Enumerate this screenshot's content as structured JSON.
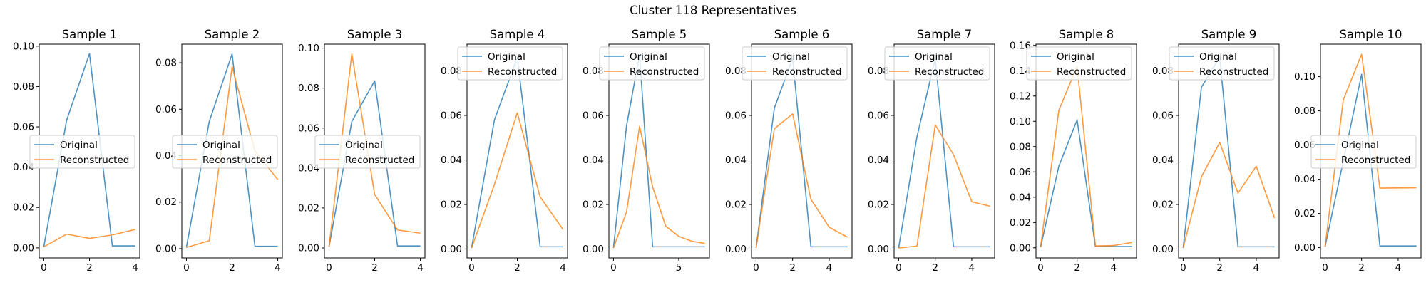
{
  "suptitle": "Cluster 118 Representatives",
  "colors": {
    "original": "#1f77b4",
    "reconstructed": "#ff7f0e"
  },
  "chart_data": [
    {
      "type": "line",
      "title": "Sample 1",
      "x": [
        0,
        1,
        2,
        3,
        4
      ],
      "xlim": [
        -0.2,
        4.2
      ],
      "ylim": [
        -0.005,
        0.101
      ],
      "xticks": [
        0,
        2,
        4
      ],
      "xtick_labels": [
        "0",
        "2",
        "4"
      ],
      "yticks": [
        0,
        0.02,
        0.04,
        0.06,
        0.08,
        0.1
      ],
      "ytick_labels": [
        "0.00",
        "0.02",
        "0.04",
        "0.06",
        "0.08",
        "0.10"
      ],
      "legend": "center-left",
      "series": [
        {
          "name": "Original",
          "values": [
            0.0005,
            0.0633,
            0.0963,
            0.001,
            0.001
          ]
        },
        {
          "name": "Reconstructed",
          "values": [
            0.0005,
            0.0068,
            0.0047,
            0.0064,
            0.0091
          ]
        }
      ]
    },
    {
      "type": "line",
      "title": "Sample 2",
      "x": [
        0,
        1,
        2,
        3,
        4
      ],
      "xlim": [
        -0.2,
        4.2
      ],
      "ylim": [
        -0.004,
        0.088
      ],
      "xticks": [
        0,
        2,
        4
      ],
      "xtick_labels": [
        "0",
        "2",
        "4"
      ],
      "yticks": [
        0,
        0.02,
        0.04,
        0.06,
        0.08
      ],
      "ytick_labels": [
        "0.00",
        "0.02",
        "0.04",
        "0.06",
        "0.08"
      ],
      "legend": "center-left",
      "series": [
        {
          "name": "Original",
          "values": [
            0.0005,
            0.0547,
            0.0838,
            0.001,
            0.001
          ]
        },
        {
          "name": "Reconstructed",
          "values": [
            0.0005,
            0.0034,
            0.0783,
            0.042,
            0.0297
          ]
        }
      ]
    },
    {
      "type": "line",
      "title": "Sample 3",
      "x": [
        0,
        1,
        2,
        3,
        4
      ],
      "xlim": [
        -0.2,
        4.2
      ],
      "ylim": [
        -0.005,
        0.102
      ],
      "xticks": [
        0,
        2,
        4
      ],
      "xtick_labels": [
        "0",
        "2",
        "4"
      ],
      "yticks": [
        0,
        0.02,
        0.04,
        0.06,
        0.08,
        0.1
      ],
      "ytick_labels": [
        "0.00",
        "0.02",
        "0.04",
        "0.06",
        "0.08",
        "0.10"
      ],
      "legend": "center-left",
      "series": [
        {
          "name": "Original",
          "values": [
            0.0005,
            0.0633,
            0.0836,
            0.001,
            0.001
          ]
        },
        {
          "name": "Reconstructed",
          "values": [
            0.0005,
            0.0972,
            0.0267,
            0.009,
            0.0074
          ]
        }
      ]
    },
    {
      "type": "line",
      "title": "Sample 4",
      "x": [
        0,
        1,
        2,
        3,
        4
      ],
      "xlim": [
        -0.2,
        4.2
      ],
      "ylim": [
        -0.004,
        0.092
      ],
      "xticks": [
        0,
        2,
        4
      ],
      "xtick_labels": [
        "0",
        "2",
        "4"
      ],
      "yticks": [
        0,
        0.02,
        0.04,
        0.06,
        0.08
      ],
      "ytick_labels": [
        "0.00",
        "0.02",
        "0.04",
        "0.06",
        "0.08"
      ],
      "legend": "top-left",
      "series": [
        {
          "name": "Original",
          "values": [
            0.0005,
            0.058,
            0.086,
            0.001,
            0.001
          ]
        },
        {
          "name": "Reconstructed",
          "values": [
            0.0005,
            0.029,
            0.0612,
            0.0234,
            0.0088
          ]
        }
      ]
    },
    {
      "type": "line",
      "title": "Sample 5",
      "x": [
        0,
        1,
        2,
        3,
        4,
        5,
        6,
        7
      ],
      "xlim": [
        -0.35,
        7.35
      ],
      "ylim": [
        -0.004,
        0.092
      ],
      "xticks": [
        0,
        5
      ],
      "xtick_labels": [
        "0",
        "5"
      ],
      "yticks": [
        0,
        0.02,
        0.04,
        0.06,
        0.08
      ],
      "ytick_labels": [
        "0.00",
        "0.02",
        "0.04",
        "0.06",
        "0.08"
      ],
      "legend": "top-left",
      "series": [
        {
          "name": "Original",
          "values": [
            0.0005,
            0.0553,
            0.0873,
            0.001,
            0.001,
            0.001,
            0.001,
            0.001
          ]
        },
        {
          "name": "Reconstructed",
          "values": [
            0.0005,
            0.0166,
            0.0551,
            0.0279,
            0.0103,
            0.0057,
            0.0035,
            0.0025
          ]
        }
      ]
    },
    {
      "type": "line",
      "title": "Sample 6",
      "x": [
        0,
        1,
        2,
        3,
        4,
        5
      ],
      "xlim": [
        -0.25,
        5.25
      ],
      "ylim": [
        -0.004,
        0.092
      ],
      "xticks": [
        0,
        2,
        4
      ],
      "xtick_labels": [
        "0",
        "2",
        "4"
      ],
      "yticks": [
        0,
        0.02,
        0.04,
        0.06,
        0.08
      ],
      "ytick_labels": [
        "0.00",
        "0.02",
        "0.04",
        "0.06",
        "0.08"
      ],
      "legend": "top-left",
      "series": [
        {
          "name": "Original",
          "values": [
            0.0005,
            0.0633,
            0.0856,
            0.001,
            0.001,
            0.001
          ]
        },
        {
          "name": "Reconstructed",
          "values": [
            0.0005,
            0.054,
            0.0607,
            0.0223,
            0.0098,
            0.0053
          ]
        }
      ]
    },
    {
      "type": "line",
      "title": "Sample 7",
      "x": [
        0,
        1,
        2,
        3,
        4,
        5
      ],
      "xlim": [
        -0.25,
        5.25
      ],
      "ylim": [
        -0.004,
        0.092
      ],
      "xticks": [
        0,
        2,
        4
      ],
      "xtick_labels": [
        "0",
        "2",
        "4"
      ],
      "yticks": [
        0,
        0.02,
        0.04,
        0.06,
        0.08
      ],
      "ytick_labels": [
        "0.00",
        "0.02",
        "0.04",
        "0.06",
        "0.08"
      ],
      "legend": "top-left",
      "series": [
        {
          "name": "Original",
          "values": [
            0.0005,
            0.0504,
            0.0856,
            0.001,
            0.001,
            0.001
          ]
        },
        {
          "name": "Reconstructed",
          "values": [
            0.0005,
            0.0013,
            0.0557,
            0.0424,
            0.0212,
            0.0192
          ]
        }
      ]
    },
    {
      "type": "line",
      "title": "Sample 8",
      "x": [
        0,
        1,
        2,
        3,
        4,
        5
      ],
      "xlim": [
        -0.25,
        5.25
      ],
      "ylim": [
        -0.008,
        0.161
      ],
      "xticks": [
        0,
        2,
        4
      ],
      "xtick_labels": [
        "0",
        "2",
        "4"
      ],
      "yticks": [
        0,
        0.02,
        0.04,
        0.06,
        0.08,
        0.1,
        0.12,
        0.14,
        0.16
      ],
      "ytick_labels": [
        "0.00",
        "0.02",
        "0.04",
        "0.06",
        "0.08",
        "0.10",
        "0.12",
        "0.14",
        "0.16"
      ],
      "legend": "top-left",
      "series": [
        {
          "name": "Original",
          "values": [
            0.0005,
            0.0645,
            0.1012,
            0.001,
            0.001,
            0.001
          ]
        },
        {
          "name": "Reconstructed",
          "values": [
            0.0005,
            0.1087,
            0.1435,
            0.0015,
            0.0018,
            0.0043
          ]
        }
      ]
    },
    {
      "type": "line",
      "title": "Sample 9",
      "x": [
        0,
        1,
        2,
        3,
        4,
        5
      ],
      "xlim": [
        -0.25,
        5.25
      ],
      "ylim": [
        -0.004,
        0.092
      ],
      "xticks": [
        0,
        2,
        4
      ],
      "xtick_labels": [
        "0",
        "2",
        "4"
      ],
      "yticks": [
        0,
        0.02,
        0.04,
        0.06,
        0.08
      ],
      "ytick_labels": [
        "0.00",
        "0.02",
        "0.04",
        "0.06",
        "0.08"
      ],
      "legend": "top-left",
      "series": [
        {
          "name": "Original",
          "values": [
            0.0005,
            0.0727,
            0.0862,
            0.001,
            0.001,
            0.001
          ]
        },
        {
          "name": "Reconstructed",
          "values": [
            0.0005,
            0.0325,
            0.0478,
            0.0251,
            0.0372,
            0.0139
          ]
        }
      ]
    },
    {
      "type": "line",
      "title": "Sample 10",
      "x": [
        0,
        1,
        2,
        3,
        4,
        5
      ],
      "xlim": [
        -0.25,
        5.25
      ],
      "ylim": [
        -0.006,
        0.119
      ],
      "xticks": [
        0,
        2,
        4
      ],
      "xtick_labels": [
        "0",
        "2",
        "4"
      ],
      "yticks": [
        0,
        0.02,
        0.04,
        0.06,
        0.08,
        0.1
      ],
      "ytick_labels": [
        "0.00",
        "0.02",
        "0.04",
        "0.06",
        "0.08",
        "0.10"
      ],
      "legend": "center-left",
      "series": [
        {
          "name": "Original",
          "values": [
            0.0005,
            0.0507,
            0.1014,
            0.001,
            0.001,
            0.001
          ]
        },
        {
          "name": "Reconstructed",
          "values": [
            0.0005,
            0.0865,
            0.1131,
            0.0348,
            0.0349,
            0.035
          ]
        }
      ]
    }
  ]
}
